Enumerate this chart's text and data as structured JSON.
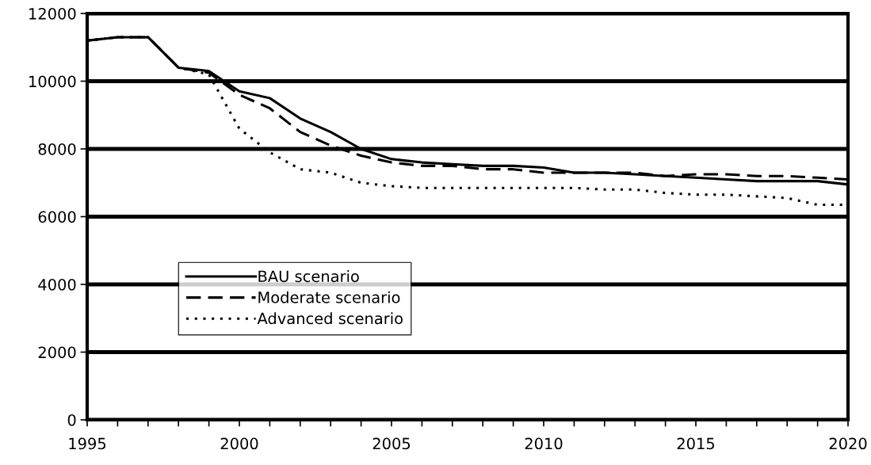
{
  "chart_data": {
    "type": "line",
    "x": [
      1995,
      1996,
      1997,
      1998,
      1999,
      2000,
      2001,
      2002,
      2003,
      2004,
      2005,
      2006,
      2007,
      2008,
      2009,
      2010,
      2011,
      2012,
      2013,
      2014,
      2015,
      2016,
      2017,
      2018,
      2019,
      2020
    ],
    "series": [
      {
        "name": "BAU scenario",
        "color": "#000000",
        "line_style": "solid",
        "values": [
          11200,
          11300,
          11300,
          10400,
          10300,
          9700,
          9500,
          8900,
          8500,
          8000,
          7700,
          7600,
          7550,
          7500,
          7500,
          7450,
          7300,
          7300,
          7250,
          7200,
          7150,
          7100,
          7050,
          7050,
          7050,
          6950
        ]
      },
      {
        "name": "Moderate scenario",
        "color": "#000000",
        "line_style": "dashed",
        "values": [
          11200,
          11300,
          11300,
          10400,
          10250,
          9600,
          9200,
          8500,
          8100,
          7800,
          7600,
          7500,
          7500,
          7400,
          7400,
          7300,
          7300,
          7300,
          7300,
          7200,
          7250,
          7250,
          7200,
          7200,
          7150,
          7100
        ]
      },
      {
        "name": "Advanced scenario",
        "color": "#000000",
        "line_style": "dotted",
        "values": [
          11200,
          11300,
          11300,
          10400,
          10200,
          8600,
          7900,
          7400,
          7300,
          7000,
          6900,
          6850,
          6850,
          6850,
          6850,
          6850,
          6850,
          6800,
          6800,
          6700,
          6650,
          6650,
          6600,
          6550,
          6350,
          6350
        ]
      }
    ],
    "xlim": [
      1995,
      2020
    ],
    "xticks": [
      1995,
      {
        "value": 1996,
        "label": null
      },
      {
        "value": 1997,
        "label": null
      },
      {
        "value": 1998,
        "label": null
      },
      {
        "value": 1999,
        "label": null
      },
      2000,
      {
        "value": 2001,
        "label": null
      },
      {
        "value": 2002,
        "label": null
      },
      {
        "value": 2003,
        "label": null
      },
      {
        "value": 2004,
        "label": null
      },
      2005,
      {
        "value": 2006,
        "label": null
      },
      {
        "value": 2007,
        "label": null
      },
      {
        "value": 2008,
        "label": null
      },
      {
        "value": 2009,
        "label": null
      },
      2010,
      {
        "value": 2011,
        "label": null
      },
      {
        "value": 2012,
        "label": null
      },
      {
        "value": 2013,
        "label": null
      },
      {
        "value": 2014,
        "label": null
      },
      2015,
      {
        "value": 2016,
        "label": null
      },
      {
        "value": 2017,
        "label": null
      },
      {
        "value": 2018,
        "label": null
      },
      {
        "value": 2019,
        "label": null
      },
      2020
    ],
    "ylim": [
      0,
      12000
    ],
    "yticks": [
      0,
      2000,
      4000,
      6000,
      8000,
      10000,
      12000
    ],
    "grid": "y",
    "legend": "center left",
    "marker": "none"
  }
}
